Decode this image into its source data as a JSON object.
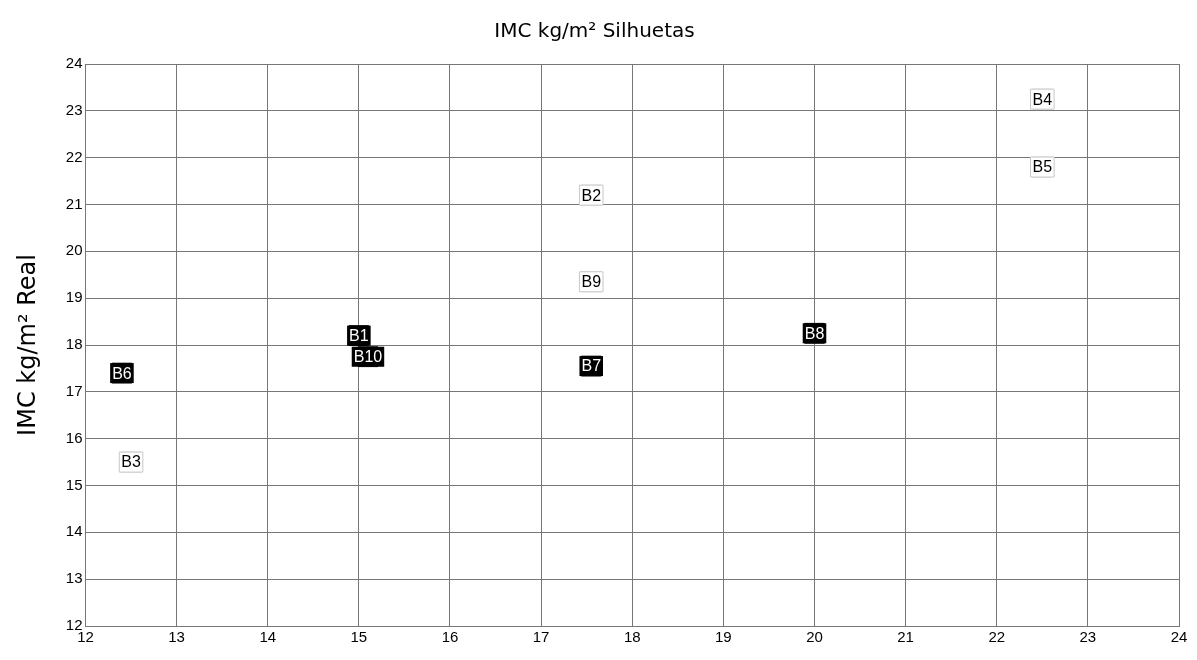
{
  "chart_data": {
    "type": "scatter",
    "title": "IMC kg/m² Silhuetas",
    "ylabel": "IMC kg/m² Real",
    "xlim": [
      12,
      24
    ],
    "xticks": [
      12,
      13,
      14,
      15,
      16,
      17,
      18,
      19,
      20,
      21,
      22,
      23,
      24
    ],
    "ylim": [
      12,
      24
    ],
    "yticks": [
      12,
      13,
      14,
      15,
      16,
      17,
      18,
      19,
      20,
      21,
      22,
      23,
      24
    ],
    "grid": true,
    "legend": false,
    "marker": "square",
    "series": [
      {
        "name": "B1",
        "color": "#000000",
        "x": [
          15
        ],
        "values": [
          18.2
        ]
      },
      {
        "name": "B2",
        "color": "#ffffff",
        "x": [
          17.55
        ],
        "values": [
          21.2
        ]
      },
      {
        "name": "B3",
        "color": "#ffffff",
        "x": [
          12.5
        ],
        "values": [
          15.5
        ]
      },
      {
        "name": "B4",
        "color": "#ffffff",
        "x": [
          22.5
        ],
        "values": [
          23.25
        ]
      },
      {
        "name": "B5",
        "color": "#ffffff",
        "x": [
          22.5
        ],
        "values": [
          21.8
        ]
      },
      {
        "name": "B6",
        "color": "#000000",
        "x": [
          12.4
        ],
        "values": [
          17.4
        ]
      },
      {
        "name": "B7",
        "color": "#000000",
        "x": [
          17.55
        ],
        "values": [
          17.55
        ]
      },
      {
        "name": "B8",
        "color": "#000000",
        "x": [
          20
        ],
        "values": [
          18.25
        ]
      },
      {
        "name": "B9",
        "color": "#ffffff",
        "x": [
          17.55
        ],
        "values": [
          19.35
        ]
      },
      {
        "name": "B10",
        "color": "#000000",
        "x": [
          15.1
        ],
        "values": [
          17.75
        ]
      }
    ]
  }
}
